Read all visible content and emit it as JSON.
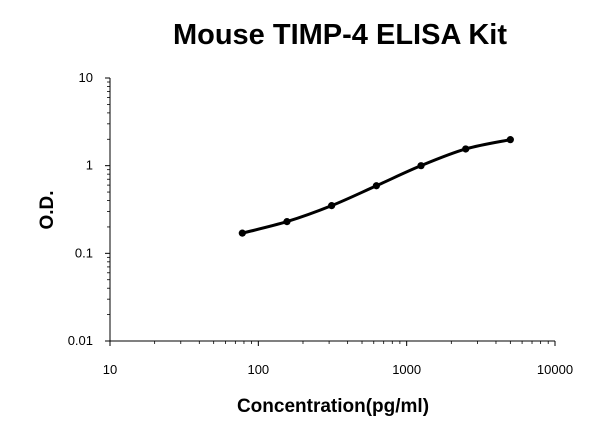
{
  "chart_data": {
    "type": "line",
    "title": "Mouse TIMP-4 ELISA Kit",
    "xlabel": "Concentration(pg/ml)",
    "ylabel": "O.D.",
    "x_scale": "log",
    "y_scale": "log",
    "xlim": [
      10,
      10000
    ],
    "ylim": [
      0.01,
      10
    ],
    "x_ticks": [
      "10",
      "100",
      "1000",
      "10000"
    ],
    "y_ticks": [
      "0.01",
      "0.1",
      "1",
      "10"
    ],
    "grid": false,
    "legend": "none",
    "series": [
      {
        "x": [
          78,
          156,
          312,
          625,
          1250,
          2500,
          5000
        ],
        "values": [
          0.17,
          0.23,
          0.35,
          0.59,
          1.0,
          1.55,
          1.98
        ]
      }
    ],
    "colors": {
      "line": "#000000",
      "points": "#000000"
    }
  }
}
